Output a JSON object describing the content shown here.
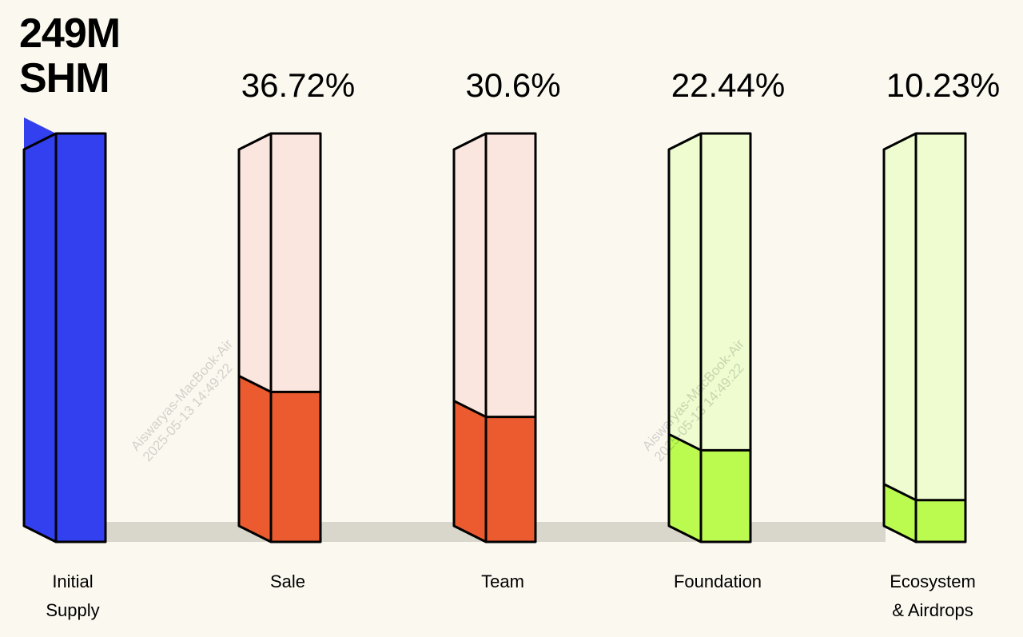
{
  "chart_data": {
    "type": "bar",
    "style": "3d-stacked-fill",
    "title": "249M SHM",
    "total_label": "Initial Supply",
    "categories": [
      "Initial Supply",
      "Sale",
      "Team",
      "Foundation",
      "Ecosystem & Airdrops"
    ],
    "category_lines": [
      [
        "Initial",
        "Supply"
      ],
      [
        "Sale"
      ],
      [
        "Team"
      ],
      [
        "Foundation"
      ],
      [
        "Ecosystem",
        "& Airdrops"
      ]
    ],
    "values": [
      100,
      36.72,
      30.6,
      22.44,
      10.23
    ],
    "value_labels": [
      "",
      "36.72%",
      "30.6%",
      "22.44%",
      "10.23%"
    ],
    "ylim": [
      0,
      100
    ],
    "grid": false,
    "colors": {
      "total": "#3340f0",
      "empty": [
        "#3340f0",
        "#fbe6df",
        "#fbe6df",
        "#eefcd0",
        "#eefcd0"
      ],
      "fill": [
        "#3340f0",
        "#ec5b2f",
        "#ec5b2f",
        "#bbfb50",
        "#bbfb50"
      ],
      "floor": "#d9d6cb"
    }
  },
  "watermark": [
    "Aiswaryas-MacBook-Air",
    "2025-05-13 14:49:22"
  ]
}
